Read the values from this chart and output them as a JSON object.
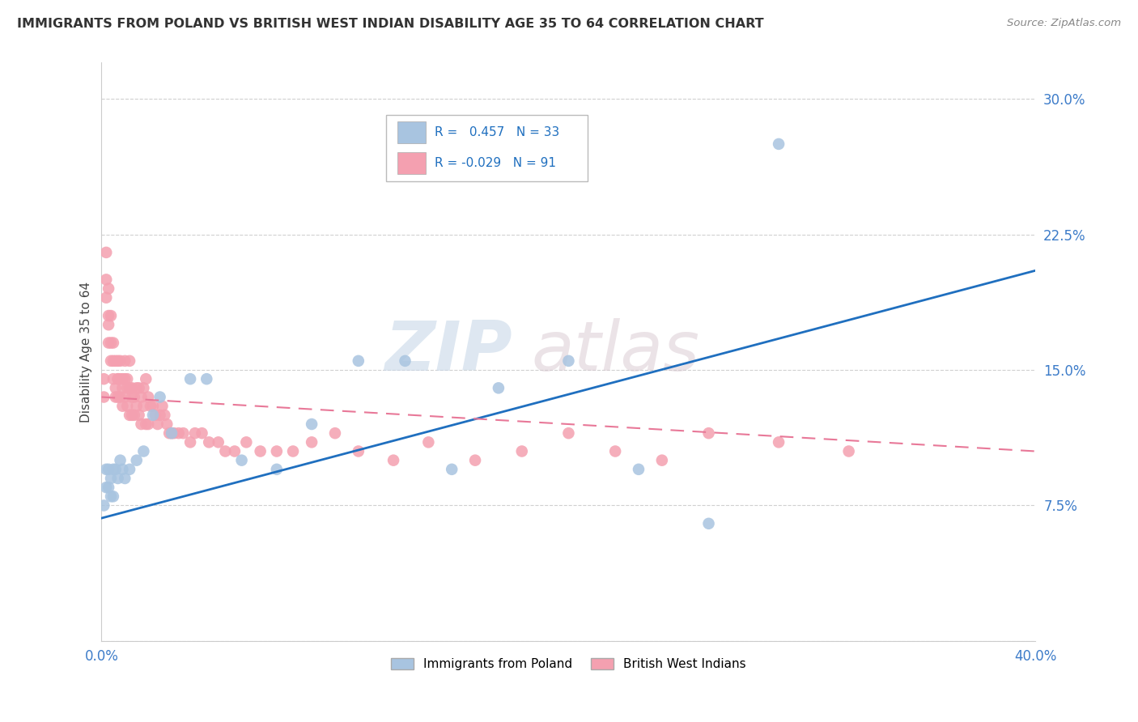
{
  "title": "IMMIGRANTS FROM POLAND VS BRITISH WEST INDIAN DISABILITY AGE 35 TO 64 CORRELATION CHART",
  "source": "Source: ZipAtlas.com",
  "ylabel": "Disability Age 35 to 64",
  "xlim": [
    0.0,
    0.4
  ],
  "ylim": [
    0.0,
    0.32
  ],
  "xticks": [
    0.0,
    0.1,
    0.2,
    0.3,
    0.4
  ],
  "xticklabels": [
    "0.0%",
    "",
    "",
    "",
    "40.0%"
  ],
  "yticks": [
    0.0,
    0.075,
    0.15,
    0.225,
    0.3
  ],
  "yticklabels": [
    "",
    "7.5%",
    "15.0%",
    "22.5%",
    "30.0%"
  ],
  "R_poland": 0.457,
  "N_poland": 33,
  "R_bwi": -0.029,
  "N_bwi": 91,
  "poland_color": "#a8c4e0",
  "bwi_color": "#f4a0b0",
  "poland_line_color": "#1f6fbf",
  "bwi_line_color": "#e87898",
  "watermark_zip": "ZIP",
  "watermark_atlas": "atlas",
  "poland_x": [
    0.001,
    0.002,
    0.002,
    0.003,
    0.003,
    0.004,
    0.004,
    0.005,
    0.005,
    0.006,
    0.007,
    0.008,
    0.009,
    0.01,
    0.012,
    0.015,
    0.018,
    0.022,
    0.025,
    0.03,
    0.038,
    0.045,
    0.06,
    0.075,
    0.09,
    0.11,
    0.13,
    0.15,
    0.17,
    0.2,
    0.23,
    0.26,
    0.29
  ],
  "poland_y": [
    0.075,
    0.085,
    0.095,
    0.085,
    0.095,
    0.08,
    0.09,
    0.08,
    0.095,
    0.095,
    0.09,
    0.1,
    0.095,
    0.09,
    0.095,
    0.1,
    0.105,
    0.125,
    0.135,
    0.115,
    0.145,
    0.145,
    0.1,
    0.095,
    0.12,
    0.155,
    0.155,
    0.095,
    0.14,
    0.155,
    0.095,
    0.065,
    0.275
  ],
  "bwi_x": [
    0.001,
    0.001,
    0.002,
    0.002,
    0.002,
    0.003,
    0.003,
    0.003,
    0.003,
    0.004,
    0.004,
    0.004,
    0.005,
    0.005,
    0.005,
    0.006,
    0.006,
    0.006,
    0.007,
    0.007,
    0.007,
    0.007,
    0.008,
    0.008,
    0.008,
    0.009,
    0.009,
    0.009,
    0.01,
    0.01,
    0.01,
    0.011,
    0.011,
    0.011,
    0.012,
    0.012,
    0.012,
    0.013,
    0.013,
    0.013,
    0.014,
    0.014,
    0.015,
    0.015,
    0.016,
    0.016,
    0.017,
    0.017,
    0.018,
    0.018,
    0.019,
    0.019,
    0.02,
    0.02,
    0.021,
    0.022,
    0.023,
    0.024,
    0.025,
    0.026,
    0.027,
    0.028,
    0.029,
    0.03,
    0.031,
    0.033,
    0.035,
    0.038,
    0.04,
    0.043,
    0.046,
    0.05,
    0.053,
    0.057,
    0.062,
    0.068,
    0.075,
    0.082,
    0.09,
    0.1,
    0.11,
    0.125,
    0.14,
    0.16,
    0.18,
    0.2,
    0.22,
    0.24,
    0.26,
    0.29,
    0.32
  ],
  "bwi_y": [
    0.145,
    0.135,
    0.215,
    0.2,
    0.19,
    0.195,
    0.18,
    0.175,
    0.165,
    0.18,
    0.165,
    0.155,
    0.165,
    0.155,
    0.145,
    0.155,
    0.14,
    0.135,
    0.155,
    0.145,
    0.145,
    0.135,
    0.155,
    0.145,
    0.135,
    0.145,
    0.14,
    0.13,
    0.155,
    0.145,
    0.135,
    0.145,
    0.14,
    0.13,
    0.155,
    0.14,
    0.125,
    0.14,
    0.135,
    0.125,
    0.135,
    0.125,
    0.14,
    0.13,
    0.14,
    0.125,
    0.135,
    0.12,
    0.14,
    0.13,
    0.145,
    0.12,
    0.135,
    0.12,
    0.13,
    0.13,
    0.125,
    0.12,
    0.125,
    0.13,
    0.125,
    0.12,
    0.115,
    0.115,
    0.115,
    0.115,
    0.115,
    0.11,
    0.115,
    0.115,
    0.11,
    0.11,
    0.105,
    0.105,
    0.11,
    0.105,
    0.105,
    0.105,
    0.11,
    0.115,
    0.105,
    0.1,
    0.11,
    0.1,
    0.105,
    0.115,
    0.105,
    0.1,
    0.115,
    0.11,
    0.105
  ]
}
